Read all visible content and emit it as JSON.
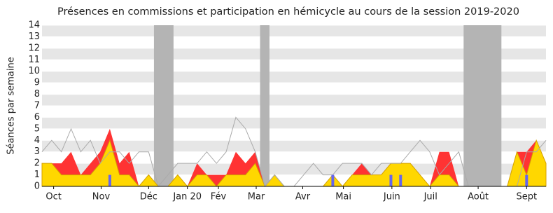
{
  "chart_data": {
    "type": "area",
    "title": "Présences en commissions et participation en hémicycle au cours de la session 2019-2020",
    "y_label": "Séances par semaine",
    "x": [
      0,
      1,
      2,
      3,
      4,
      5,
      6,
      7,
      8,
      9,
      10,
      11,
      12,
      13,
      14,
      15,
      16,
      17,
      18,
      19,
      20,
      21,
      22,
      23,
      24,
      25,
      26,
      27,
      28,
      29,
      30,
      31,
      32,
      33,
      34,
      35,
      36,
      37,
      38,
      39,
      40,
      41,
      42,
      43,
      44,
      45,
      46,
      47,
      48,
      49,
      50,
      51,
      52
    ],
    "xlim": [
      0,
      52
    ],
    "xticks": [
      {
        "value": 1.2,
        "label": "Oct"
      },
      {
        "value": 6.1,
        "label": "Nov"
      },
      {
        "value": 11,
        "label": "Déc"
      },
      {
        "value": 15,
        "label": "Jan 20"
      },
      {
        "value": 18.2,
        "label": "Fév"
      },
      {
        "value": 22.1,
        "label": "Mar"
      },
      {
        "value": 26.9,
        "label": "Avr"
      },
      {
        "value": 31.1,
        "label": "Mai"
      },
      {
        "value": 36.1,
        "label": "Juin"
      },
      {
        "value": 40.1,
        "label": "Juil"
      },
      {
        "value": 45,
        "label": "Août"
      },
      {
        "value": 50,
        "label": "Sept"
      }
    ],
    "ylim": [
      0,
      14
    ],
    "yticks": [
      0,
      1,
      2,
      3,
      4,
      5,
      6,
      7,
      8,
      9,
      10,
      11,
      12,
      13,
      14
    ],
    "grid": true,
    "shaded_ranges": [
      [
        11.55,
        13.57
      ],
      [
        22.5,
        23.47
      ],
      [
        43.5,
        47.4
      ]
    ],
    "shade_color": "#b4b4b4",
    "series": [
      {
        "color": "#ff3333",
        "values": [
          2,
          2,
          2,
          3,
          1,
          2,
          3,
          5,
          2,
          3,
          0,
          1,
          0,
          0,
          1,
          0,
          2,
          1,
          1,
          1,
          3,
          2,
          3,
          0,
          1,
          0,
          0,
          0,
          0,
          0,
          1,
          0,
          1,
          2,
          1,
          1,
          2,
          2,
          2,
          1,
          0,
          3,
          3,
          0,
          0,
          0,
          0,
          0,
          0,
          3,
          3,
          4,
          2
        ]
      },
      {
        "color": "#ffd700",
        "values": [
          2,
          2,
          1,
          1,
          1,
          1,
          2,
          4,
          1,
          1,
          0,
          1,
          0,
          0,
          1,
          0,
          1,
          1,
          0,
          1,
          1,
          1,
          2,
          0,
          1,
          0,
          0,
          0,
          0,
          0,
          1,
          0,
          1,
          1,
          1,
          1,
          2,
          2,
          2,
          1,
          0,
          1,
          1,
          0,
          0,
          0,
          0,
          0,
          0,
          3,
          1,
          4,
          2
        ]
      },
      {
        "type": "line",
        "color": "#aaaaaa",
        "values": [
          3,
          4,
          3,
          5,
          3,
          4,
          2,
          3,
          3,
          2,
          3,
          3,
          0,
          1,
          2,
          2,
          2,
          3,
          2,
          3,
          6,
          5,
          3,
          0,
          1,
          0,
          0,
          1,
          2,
          1,
          1,
          2,
          2,
          2,
          1,
          2,
          2,
          2,
          3,
          4,
          3,
          1,
          2,
          3,
          0,
          0,
          0,
          0,
          0,
          0,
          3,
          3,
          4
        ]
      },
      {
        "type": "bar",
        "color": "#6666ee",
        "values": [
          0,
          0,
          0,
          0,
          0,
          0,
          0,
          1,
          0,
          0,
          0,
          0,
          0,
          0,
          0,
          0,
          0,
          0,
          0,
          0,
          0,
          0,
          0,
          0,
          0,
          0,
          0,
          0,
          0,
          0,
          1,
          0,
          0,
          0,
          0,
          0,
          1,
          1,
          0,
          0,
          0,
          0,
          0,
          0,
          0,
          0,
          0,
          0,
          0,
          0,
          1,
          0,
          0
        ]
      }
    ]
  }
}
